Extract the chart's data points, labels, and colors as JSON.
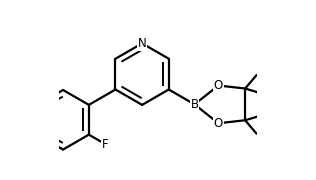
{
  "line_color": "#000000",
  "bg_color": "#ffffff",
  "line_width": 1.6,
  "font_size": 8.5,
  "figsize": [
    3.16,
    1.8
  ],
  "dpi": 100,
  "xlim": [
    0.0,
    1.0
  ],
  "ylim": [
    0.05,
    0.95
  ]
}
